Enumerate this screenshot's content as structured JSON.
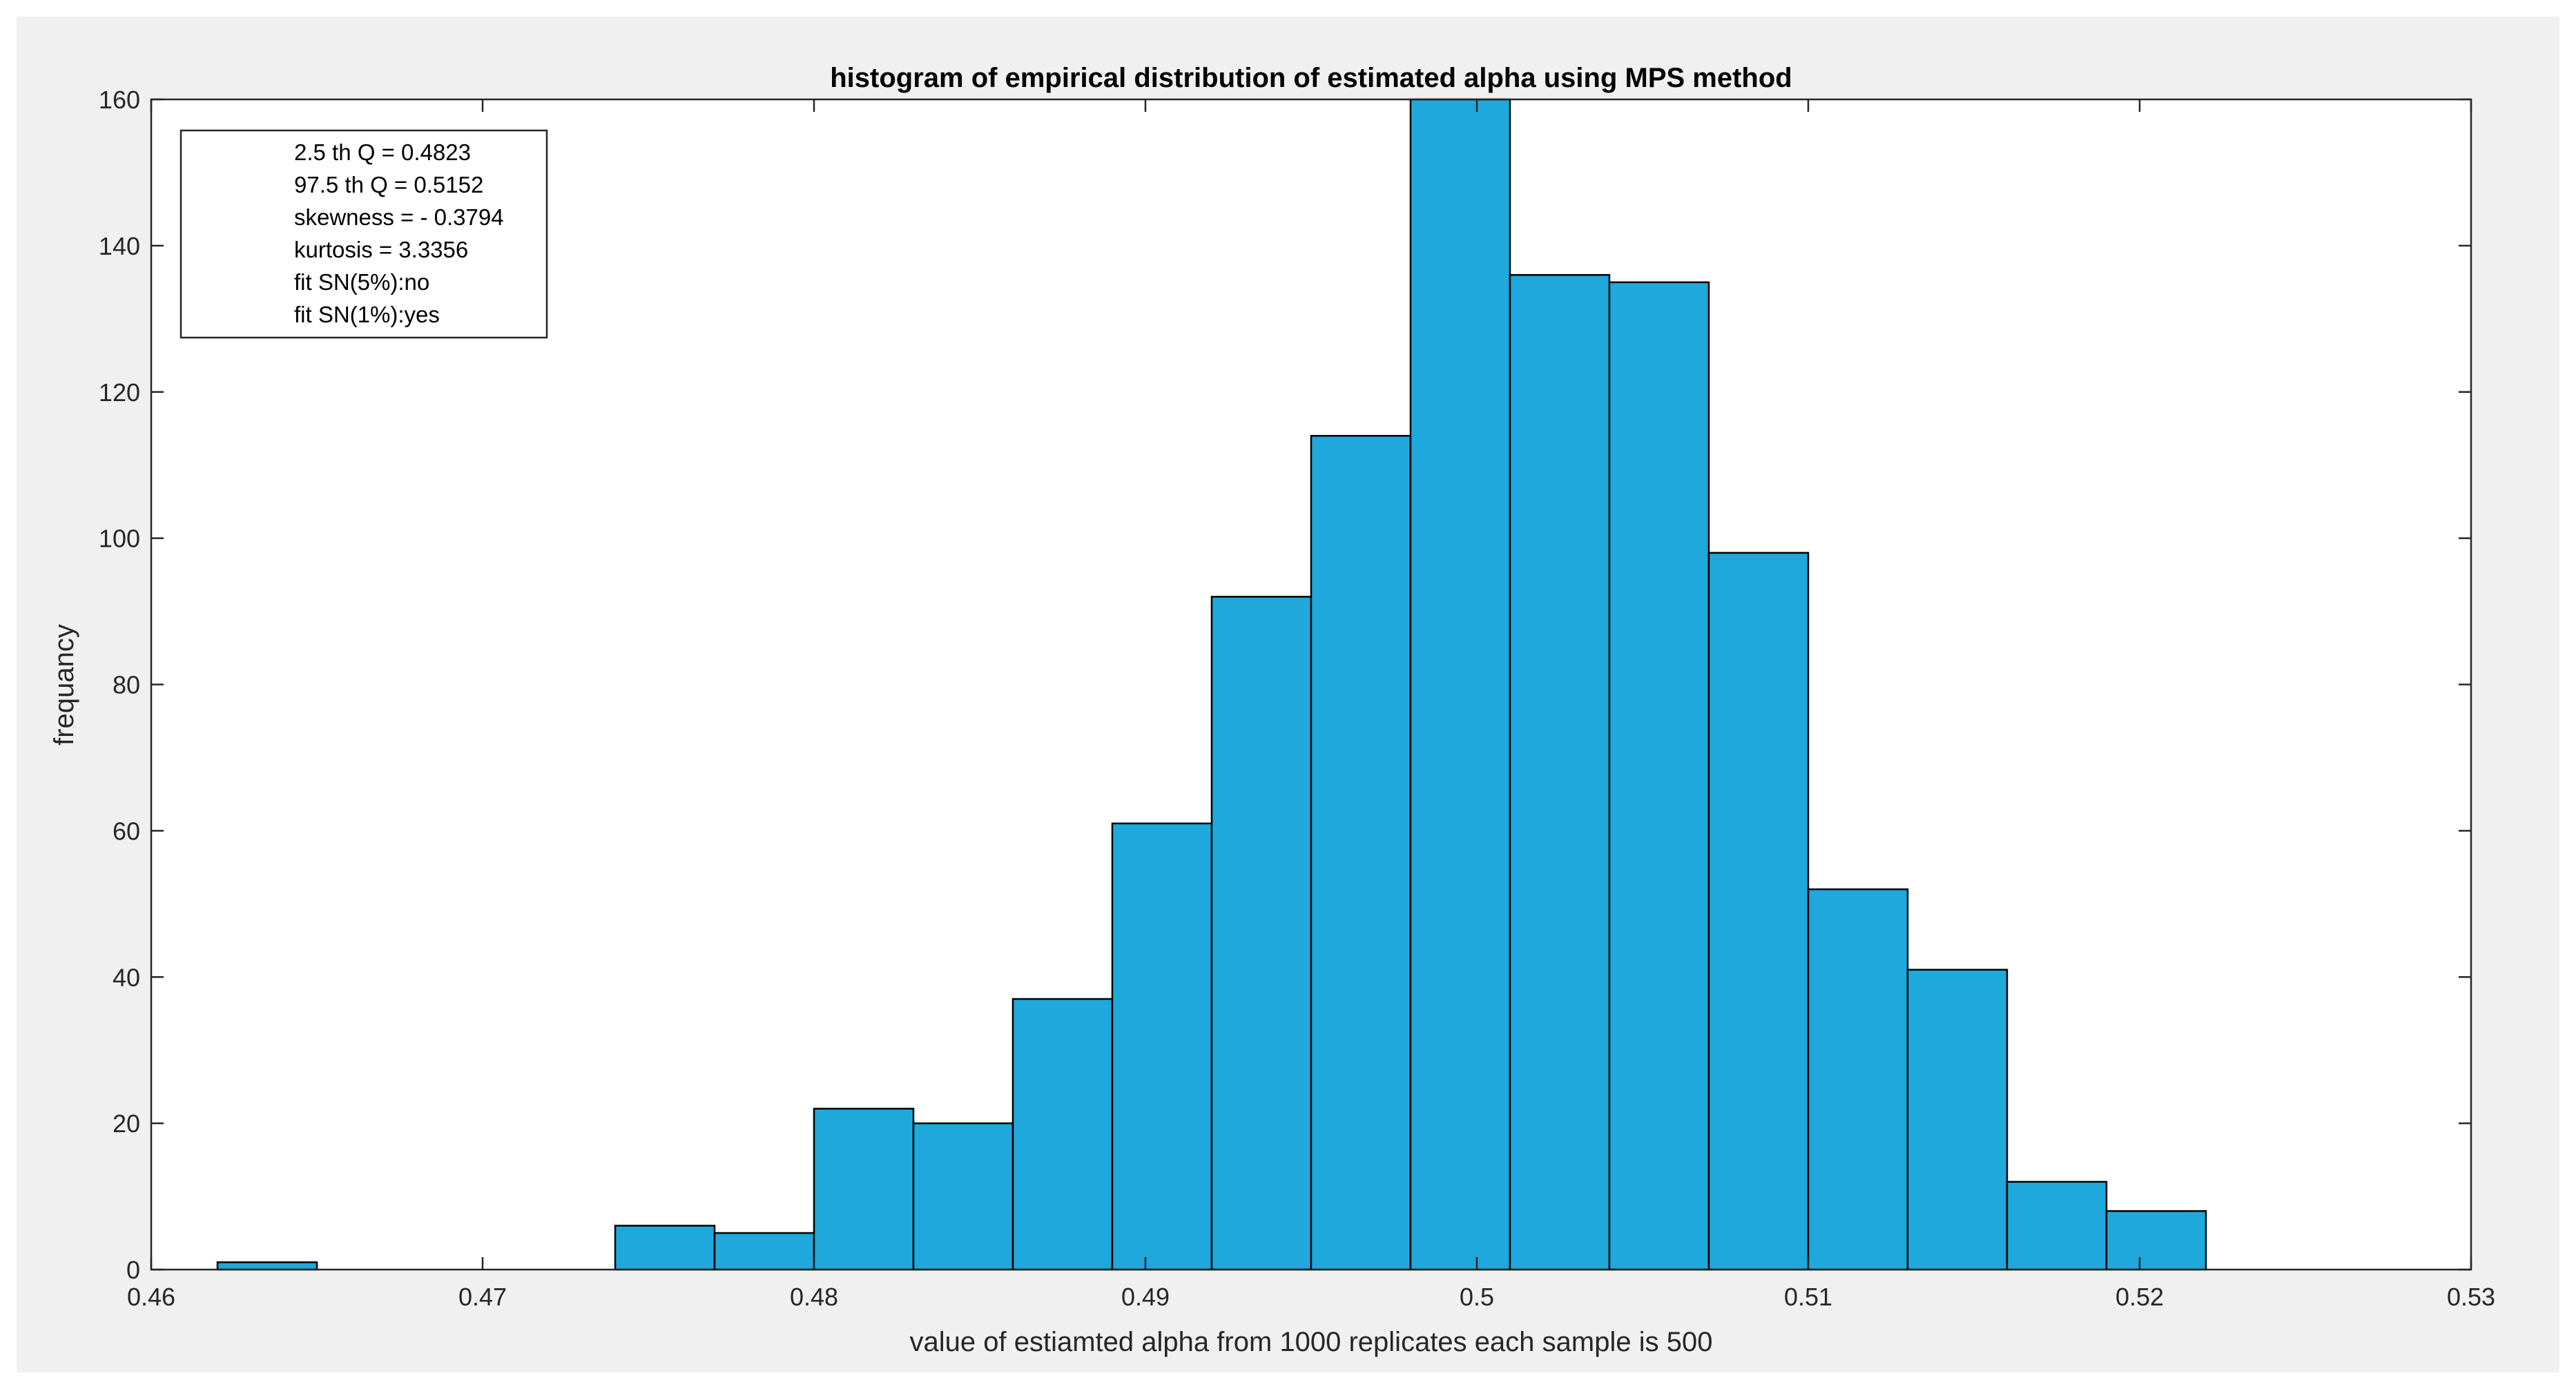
{
  "chart_data": {
    "type": "bar",
    "title": "histogram of empirical distribution of estimated alpha using MPS method",
    "xlabel": "value of estiamted alpha from 1000 replicates each sample is 500",
    "ylabel": "frequancy",
    "xlim": [
      0.46,
      0.53
    ],
    "ylim": [
      0,
      160
    ],
    "xticks": [
      0.46,
      0.47,
      0.48,
      0.49,
      0.5,
      0.51,
      0.52,
      0.53
    ],
    "xtick_labels": [
      "0.46",
      "0.47",
      "0.48",
      "0.49",
      "0.5",
      "0.51",
      "0.52",
      "0.53"
    ],
    "yticks": [
      0,
      20,
      40,
      60,
      80,
      100,
      120,
      140,
      160
    ],
    "ytick_labels": [
      "0",
      "20",
      "40",
      "60",
      "80",
      "100",
      "120",
      "140",
      "160"
    ],
    "bins": [
      {
        "left": 0.462,
        "right": 0.465,
        "count": 1
      },
      {
        "left": 0.465,
        "right": 0.468,
        "count": 0
      },
      {
        "left": 0.468,
        "right": 0.471,
        "count": 0
      },
      {
        "left": 0.471,
        "right": 0.474,
        "count": 0
      },
      {
        "left": 0.474,
        "right": 0.477,
        "count": 6
      },
      {
        "left": 0.477,
        "right": 0.48,
        "count": 5
      },
      {
        "left": 0.48,
        "right": 0.483,
        "count": 22
      },
      {
        "left": 0.483,
        "right": 0.486,
        "count": 20
      },
      {
        "left": 0.486,
        "right": 0.489,
        "count": 37
      },
      {
        "left": 0.489,
        "right": 0.492,
        "count": 61
      },
      {
        "left": 0.492,
        "right": 0.495,
        "count": 92
      },
      {
        "left": 0.495,
        "right": 0.498,
        "count": 114
      },
      {
        "left": 0.498,
        "right": 0.501,
        "count": 160
      },
      {
        "left": 0.501,
        "right": 0.504,
        "count": 136
      },
      {
        "left": 0.504,
        "right": 0.507,
        "count": 135
      },
      {
        "left": 0.507,
        "right": 0.51,
        "count": 98
      },
      {
        "left": 0.51,
        "right": 0.513,
        "count": 52
      },
      {
        "left": 0.513,
        "right": 0.516,
        "count": 41
      },
      {
        "left": 0.516,
        "right": 0.519,
        "count": 12
      },
      {
        "left": 0.519,
        "right": 0.522,
        "count": 8
      }
    ],
    "bar_color": "#1ea8dc",
    "grid": false,
    "annotation": {
      "placement": "top-left",
      "lines": [
        "2.5 th Q = 0.4823",
        "97.5 th Q = 0.5152",
        "skewness = - 0.3794",
        "kurtosis = 3.3356",
        "fit SN(5%):no",
        "fit SN(1%):yes"
      ]
    }
  }
}
